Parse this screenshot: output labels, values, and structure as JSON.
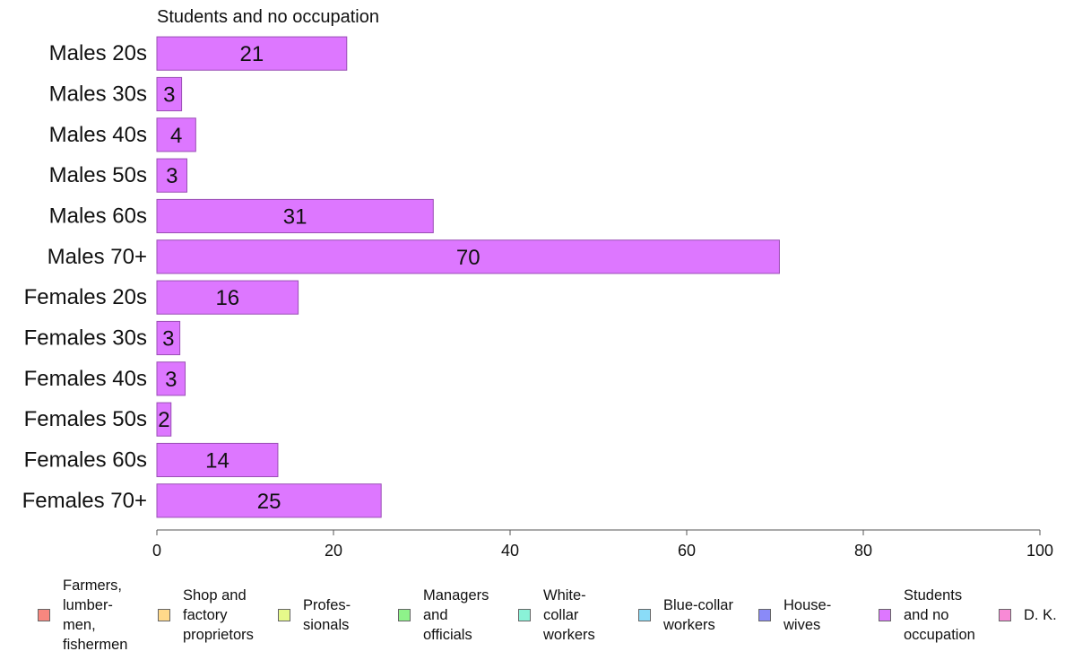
{
  "chart_data": {
    "type": "bar",
    "orientation": "horizontal",
    "title": "Students and no occupation",
    "categories": [
      "Males 20s",
      "Males 30s",
      "Males 40s",
      "Males 50s",
      "Males 60s",
      "Males 70+",
      "Females 20s",
      "Females 30s",
      "Females 40s",
      "Females 50s",
      "Females 60s",
      "Females 70+"
    ],
    "values": [
      21.5,
      2.8,
      4.4,
      3.4,
      31.3,
      70.5,
      16.0,
      2.6,
      3.2,
      1.6,
      13.7,
      25.4
    ],
    "data_labels": [
      "21",
      "3",
      "4",
      "3",
      "31",
      "70",
      "16",
      "3",
      "3",
      "2",
      "14",
      "25"
    ],
    "xlim": [
      0,
      100
    ],
    "xticks": [
      "0",
      "20",
      "40",
      "60",
      "80",
      "100"
    ],
    "bar_color": "#dd77ff",
    "legend": [
      {
        "label": "Farmers,\nlumber-\nmen,\nfishermen",
        "color": "#f8877f"
      },
      {
        "label": "Shop and\nfactory\nproprietors",
        "color": "#ffd98a"
      },
      {
        "label": "Profes-\nsionals",
        "color": "#e6f98a"
      },
      {
        "label": "Managers\nand\nofficials",
        "color": "#8ef28a"
      },
      {
        "label": "White-\ncollar\nworkers",
        "color": "#8af2d8"
      },
      {
        "label": "Blue-collar\nworkers",
        "color": "#8adcf8"
      },
      {
        "label": "House-\nwives",
        "color": "#8a8af8"
      },
      {
        "label": "Students\nand no\noccupation",
        "color": "#dd77ff"
      },
      {
        "label": "D. K.",
        "color": "#f88ad6"
      }
    ],
    "legend_position": "bottom"
  }
}
